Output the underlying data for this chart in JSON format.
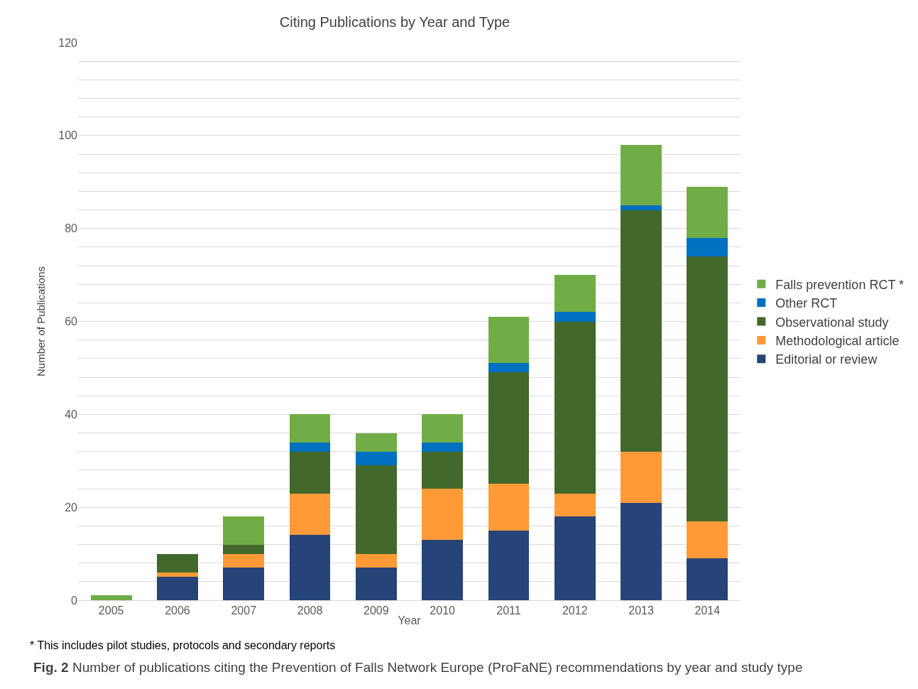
{
  "chart_data": {
    "type": "bar",
    "stacked": true,
    "title": "Citing Publications by Year and Type",
    "xlabel": "Year",
    "ylabel": "Number of Publications",
    "categories": [
      "2005",
      "2006",
      "2007",
      "2008",
      "2009",
      "2010",
      "2011",
      "2012",
      "2013",
      "2014"
    ],
    "series": [
      {
        "name": "Editorial or review",
        "color": "#264478",
        "values": [
          0,
          5,
          7,
          14,
          7,
          13,
          15,
          18,
          21,
          9
        ]
      },
      {
        "name": "Methodological article",
        "color": "#ff9a37",
        "values": [
          0,
          1,
          3,
          9,
          3,
          11,
          10,
          5,
          11,
          8
        ]
      },
      {
        "name": "Observational study",
        "color": "#43682b",
        "values": [
          0,
          4,
          2,
          9,
          19,
          8,
          24,
          37,
          52,
          57
        ]
      },
      {
        "name": "Other RCT",
        "color": "#0070c0",
        "values": [
          0,
          0,
          0,
          2,
          3,
          2,
          2,
          2,
          1,
          4
        ]
      },
      {
        "name": "Falls prevention RCT *",
        "color": "#70ad47",
        "values": [
          1,
          0,
          6,
          6,
          4,
          6,
          10,
          8,
          13,
          11
        ]
      }
    ],
    "ylim": [
      0,
      120
    ],
    "yticks": [
      0,
      {
        "value": 4,
        "label": null
      },
      {
        "value": 8,
        "label": null
      },
      {
        "value": 12,
        "label": null
      },
      {
        "value": 16,
        "label": null
      },
      20,
      {
        "value": 24,
        "label": null
      },
      {
        "value": 28,
        "label": null
      },
      {
        "value": 32,
        "label": null
      },
      {
        "value": 36,
        "label": null
      },
      40,
      {
        "value": 44,
        "label": null
      },
      {
        "value": 48,
        "label": null
      },
      {
        "value": 52,
        "label": null
      },
      {
        "value": 56,
        "label": null
      },
      60,
      {
        "value": 64,
        "label": null
      },
      {
        "value": 68,
        "label": null
      },
      {
        "value": 72,
        "label": null
      },
      {
        "value": 76,
        "label": null
      },
      80,
      {
        "value": 84,
        "label": null
      },
      {
        "value": 88,
        "label": null
      },
      {
        "value": 92,
        "label": null
      },
      {
        "value": 96,
        "label": null
      },
      100,
      {
        "value": 104,
        "label": null
      },
      {
        "value": 108,
        "label": null
      },
      {
        "value": 112,
        "label": null
      },
      {
        "value": 116,
        "label": null
      },
      120
    ],
    "grid": "y",
    "legend": "right",
    "annotations": [
      "* This includes pilot studies, protocols and secondary reports",
      "Fig. 2 Number of publications citing the Prevention of Falls Network Europe (ProFaNE) recommendations by year and study type"
    ]
  }
}
